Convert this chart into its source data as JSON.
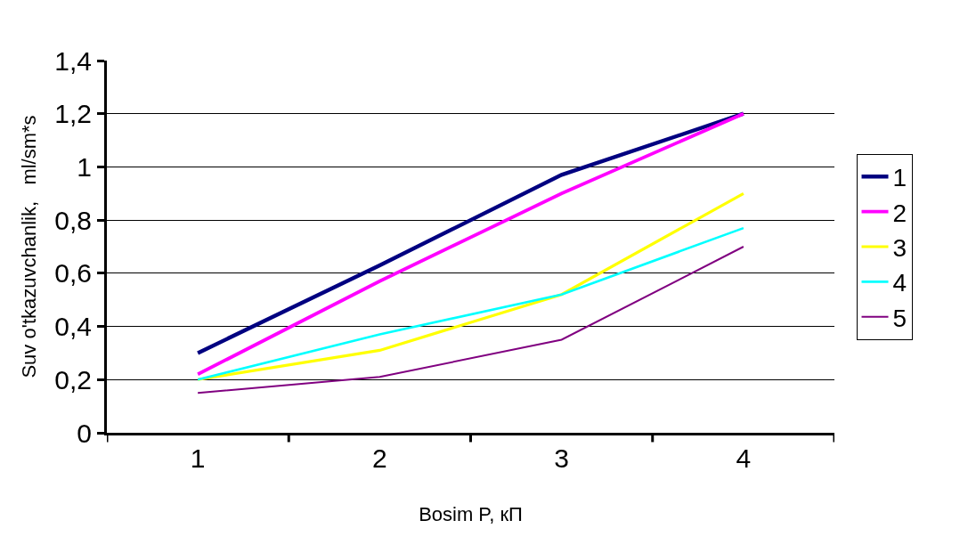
{
  "chart_data": {
    "type": "line",
    "xlabel": "Bosim P, кП",
    "ylabel": "Suv o'tkazuvchanlik,   ml/sm*s",
    "categories": [
      "1",
      "2",
      "3",
      "4"
    ],
    "series": [
      {
        "name": "1",
        "color": "#000080",
        "values": [
          0.3,
          0.63,
          0.97,
          1.2
        ]
      },
      {
        "name": "2",
        "color": "#ff00ff",
        "values": [
          0.22,
          0.57,
          0.9,
          1.2
        ]
      },
      {
        "name": "3",
        "color": "#ffff00",
        "values": [
          0.2,
          0.31,
          0.52,
          0.9
        ]
      },
      {
        "name": "4",
        "color": "#00ffff",
        "values": [
          0.2,
          0.37,
          0.52,
          0.77
        ]
      },
      {
        "name": "5",
        "color": "#800080",
        "values": [
          0.15,
          0.21,
          0.35,
          0.7
        ]
      }
    ],
    "ylim": [
      0,
      1.4
    ],
    "yticks": [
      0,
      {
        "value": 0.2,
        "label": "0,2"
      },
      {
        "value": 0.4,
        "label": "0,4"
      },
      {
        "value": 0.6,
        "label": "0,6"
      },
      {
        "value": 0.8,
        "label": "0,8"
      },
      1,
      {
        "value": 1.2,
        "label": "1,2"
      },
      {
        "value": 1.4,
        "label": "1,4"
      }
    ],
    "grid": "y",
    "legend": "right",
    "marker": "none",
    "line_style": "solid"
  }
}
